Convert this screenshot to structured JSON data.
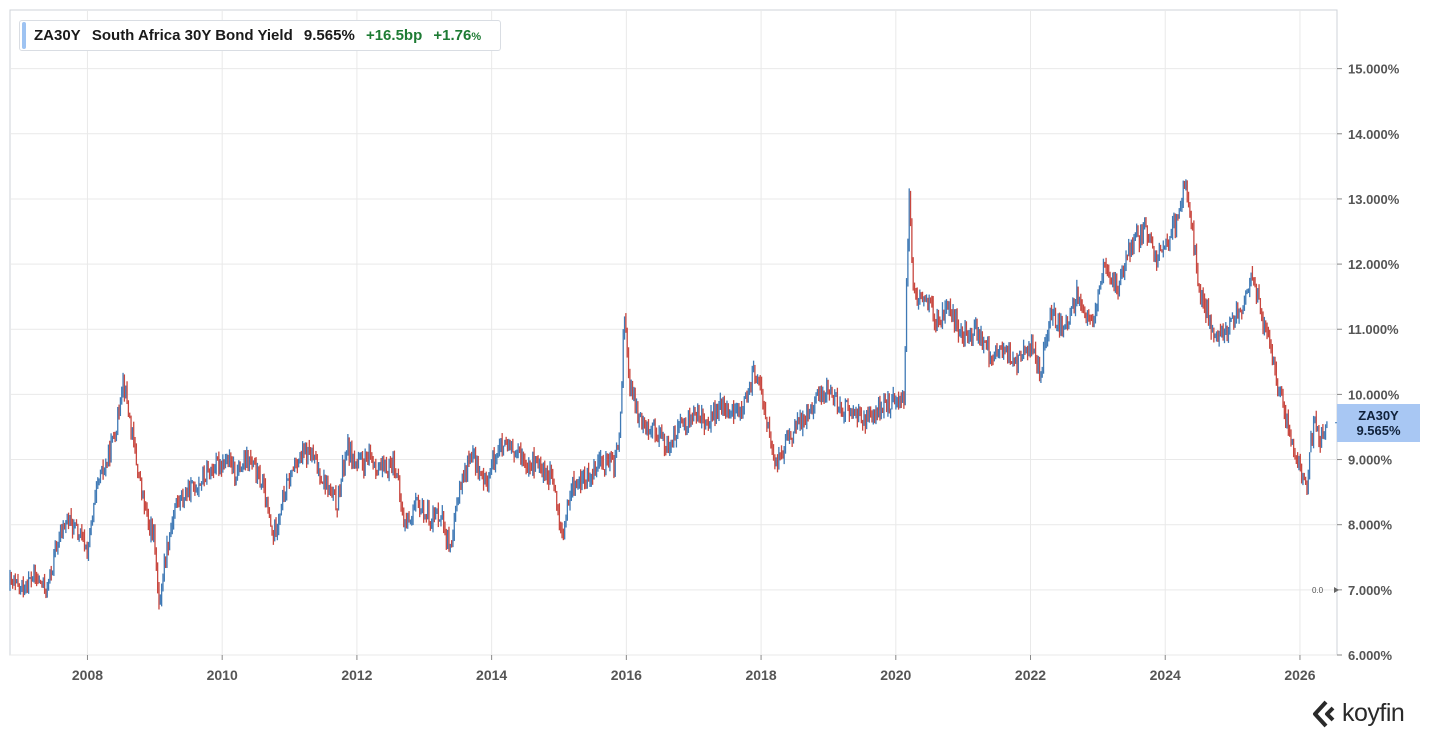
{
  "legend": {
    "ticker": "ZA30Y",
    "name": "South Africa 30Y Bond Yield",
    "value": "9.565%",
    "change_bp": "+16.5bp",
    "change_pct_num": "+1.76",
    "change_pct_sign": "%"
  },
  "last_tag": {
    "ticker": "ZA30Y",
    "value": "9.565%"
  },
  "zero_marker": "0.0",
  "brand": {
    "name": "koyfin"
  },
  "colors": {
    "up": "#3f79b5",
    "down": "#c8473f",
    "grid": "#e9e9e9",
    "tag": "#a8c7f3",
    "change_up": "#1e7b34"
  },
  "chart_data": {
    "type": "ohlc",
    "title": "ZA30Y South Africa 30Y Bond Yield",
    "xlabel": "",
    "ylabel": "",
    "x_range": [
      2006.85,
      2026.55
    ],
    "y_range": [
      6.0,
      15.9
    ],
    "x_ticks": [
      {
        "value": 2008,
        "label": "2008"
      },
      {
        "value": 2010,
        "label": "2010"
      },
      {
        "value": 2012,
        "label": "2012"
      },
      {
        "value": 2014,
        "label": "2014"
      },
      {
        "value": 2016,
        "label": "2016"
      },
      {
        "value": 2018,
        "label": "2018"
      },
      {
        "value": 2020,
        "label": "2020"
      },
      {
        "value": 2022,
        "label": "2022"
      },
      {
        "value": 2024,
        "label": "2024"
      },
      {
        "value": 2026,
        "label": "2026"
      }
    ],
    "y_ticks": [
      {
        "value": 6,
        "label": "6.000%"
      },
      {
        "value": 7,
        "label": "7.000%"
      },
      {
        "value": 8,
        "label": "8.000%"
      },
      {
        "value": 9,
        "label": "9.000%"
      },
      {
        "value": 10,
        "label": "10.000%"
      },
      {
        "value": 11,
        "label": "11.000%"
      },
      {
        "value": 12,
        "label": "12.000%"
      },
      {
        "value": 13,
        "label": "13.000%"
      },
      {
        "value": 14,
        "label": "14.000%"
      },
      {
        "value": 15,
        "label": "15.000%"
      }
    ],
    "grid": true,
    "last_value": 9.565,
    "series": [
      {
        "x": [
          2006.85,
          2007.0,
          2007.2,
          2007.4,
          2007.55,
          2007.7,
          2007.9,
          2008.0,
          2008.15,
          2008.3,
          2008.45,
          2008.52,
          2008.6,
          2008.75,
          2008.9,
          2009.0,
          2009.06,
          2009.15,
          2009.3,
          2009.5,
          2009.7,
          2009.9,
          2010.05,
          2010.2,
          2010.4,
          2010.6,
          2010.75,
          2010.9,
          2011.1,
          2011.3,
          2011.5,
          2011.7,
          2011.85,
          2012.0,
          2012.2,
          2012.4,
          2012.55,
          2012.7,
          2012.9,
          2013.1,
          2013.25,
          2013.4,
          2013.5,
          2013.7,
          2013.9,
          2014.1,
          2014.3,
          2014.5,
          2014.7,
          2014.9,
          2015.05,
          2015.2,
          2015.4,
          2015.6,
          2015.8,
          2015.9,
          2015.97,
          2016.05,
          2016.2,
          2016.4,
          2016.6,
          2016.8,
          2017.0,
          2017.2,
          2017.4,
          2017.6,
          2017.8,
          2017.9,
          2018.05,
          2018.2,
          2018.4,
          2018.6,
          2018.8,
          2019.0,
          2019.2,
          2019.4,
          2019.6,
          2019.8,
          2020.0,
          2020.12,
          2020.2,
          2020.25,
          2020.3,
          2020.45,
          2020.6,
          2020.8,
          2021.0,
          2021.2,
          2021.4,
          2021.6,
          2021.8,
          2022.0,
          2022.15,
          2022.3,
          2022.5,
          2022.7,
          2022.9,
          2023.1,
          2023.3,
          2023.5,
          2023.7,
          2023.85,
          2024.0,
          2024.15,
          2024.3,
          2024.4,
          2024.5,
          2024.7,
          2024.85,
          2025.0,
          2025.15,
          2025.3,
          2025.45,
          2025.6,
          2025.8,
          2025.95,
          2026.1,
          2026.2,
          2026.3,
          2026.4
        ],
        "y": [
          7.1,
          7.0,
          7.2,
          7.0,
          7.7,
          8.1,
          7.8,
          7.6,
          8.6,
          9.0,
          9.6,
          10.3,
          9.8,
          8.8,
          8.0,
          7.8,
          6.7,
          7.5,
          8.3,
          8.5,
          8.7,
          8.9,
          9.0,
          8.8,
          9.0,
          8.6,
          7.8,
          8.4,
          9.0,
          9.1,
          8.7,
          8.3,
          9.2,
          8.9,
          9.0,
          8.8,
          9.0,
          8.0,
          8.3,
          8.1,
          8.2,
          7.5,
          8.5,
          9.1,
          8.6,
          9.2,
          9.1,
          9.0,
          8.9,
          8.7,
          7.8,
          8.6,
          8.7,
          9.0,
          8.9,
          9.3,
          11.3,
          10.1,
          9.6,
          9.5,
          9.2,
          9.5,
          9.7,
          9.6,
          9.8,
          9.7,
          9.9,
          10.4,
          9.8,
          8.9,
          9.3,
          9.6,
          9.9,
          10.1,
          9.8,
          9.7,
          9.6,
          9.8,
          9.9,
          10.0,
          13.2,
          11.8,
          11.4,
          11.5,
          11.1,
          11.3,
          10.9,
          11.0,
          10.6,
          10.7,
          10.5,
          10.8,
          10.3,
          11.3,
          10.9,
          11.6,
          11.0,
          12.0,
          11.6,
          12.3,
          12.5,
          12.1,
          12.3,
          12.6,
          13.3,
          12.6,
          11.6,
          11.0,
          10.9,
          11.2,
          11.3,
          11.9,
          11.1,
          10.5,
          9.6,
          9.0,
          8.5,
          9.6,
          9.3,
          9.565
        ]
      }
    ]
  }
}
